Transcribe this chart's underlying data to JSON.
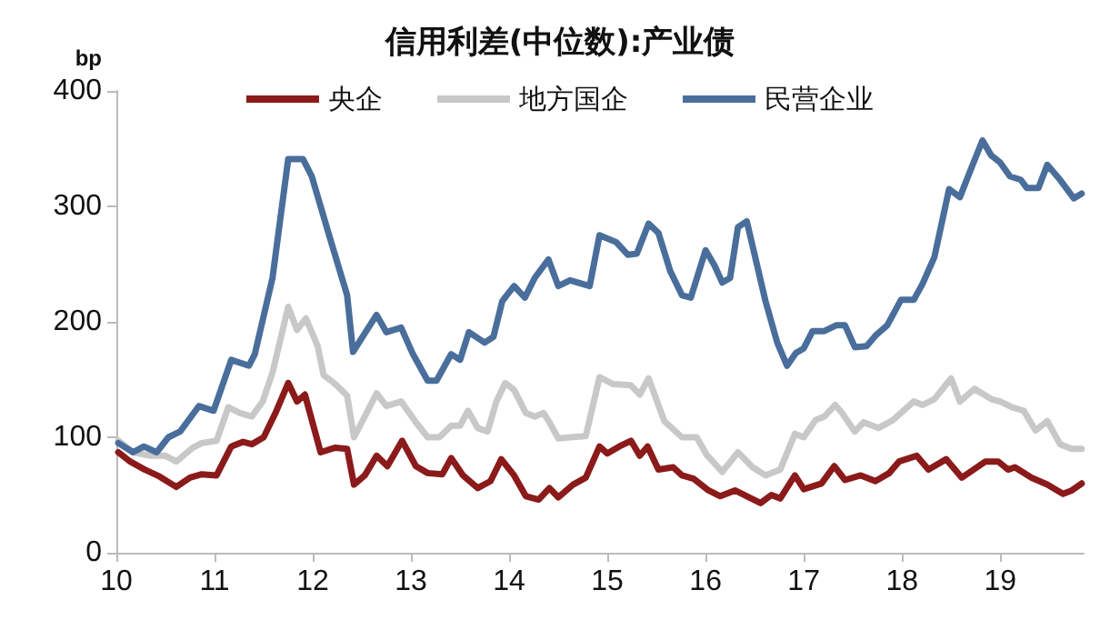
{
  "chart_data": {
    "type": "line",
    "title": "信用利差(中位数):产业债",
    "ylabel": "bp",
    "legend": "top",
    "grid": false,
    "marker": "none",
    "line_style": "solid",
    "xlim": [
      2010,
      2019.85
    ],
    "ylim": [
      0,
      400
    ],
    "yticks": [
      0,
      100,
      200,
      300,
      400
    ],
    "xticks": [
      {
        "value": 2010,
        "label": "10"
      },
      {
        "value": 2011,
        "label": "11"
      },
      {
        "value": 2012,
        "label": "12"
      },
      {
        "value": 2013,
        "label": "13"
      },
      {
        "value": 2014,
        "label": "14"
      },
      {
        "value": 2015,
        "label": "15"
      },
      {
        "value": 2016,
        "label": "16"
      },
      {
        "value": 2017,
        "label": "17"
      },
      {
        "value": 2018,
        "label": "18"
      },
      {
        "value": 2019,
        "label": "19"
      }
    ],
    "series": [
      {
        "name": "央企",
        "color": "#8b1a1a",
        "x": [
          2010.02,
          2010.14,
          2010.29,
          2010.44,
          2010.61,
          2010.75,
          2010.87,
          2011.02,
          2011.17,
          2011.29,
          2011.38,
          2011.5,
          2011.62,
          2011.75,
          2011.84,
          2011.92,
          2012.08,
          2012.23,
          2012.35,
          2012.42,
          2012.53,
          2012.65,
          2012.76,
          2012.91,
          2013.05,
          2013.17,
          2013.32,
          2013.41,
          2013.53,
          2013.68,
          2013.81,
          2013.92,
          2014.05,
          2014.17,
          2014.3,
          2014.41,
          2014.5,
          2014.65,
          2014.78,
          2014.92,
          2015,
          2015.12,
          2015.24,
          2015.33,
          2015.41,
          2015.52,
          2015.67,
          2015.76,
          2015.88,
          2016.03,
          2016.15,
          2016.3,
          2016.42,
          2016.56,
          2016.67,
          2016.76,
          2016.91,
          2017,
          2017.18,
          2017.31,
          2017.42,
          2017.58,
          2017.73,
          2017.87,
          2017.97,
          2018.15,
          2018.27,
          2018.45,
          2018.61,
          2018.85,
          2018.98,
          2019.08,
          2019.15,
          2019.32,
          2019.48,
          2019.64,
          2019.73,
          2019.83
        ],
        "values": [
          87,
          79,
          72,
          66,
          57,
          65,
          68,
          67,
          92,
          96,
          94,
          100,
          121,
          147,
          131,
          137,
          87,
          91,
          90,
          59,
          67,
          84,
          75,
          97,
          75,
          69,
          68,
          82,
          67,
          56,
          62,
          81,
          67,
          49,
          46,
          56,
          48,
          59,
          65,
          92,
          86,
          92,
          97,
          84,
          92,
          72,
          74,
          67,
          64,
          54,
          49,
          54,
          49,
          43,
          50,
          47,
          67,
          55,
          60,
          75,
          63,
          67,
          62,
          69,
          79,
          84,
          72,
          81,
          65,
          79,
          79,
          72,
          74,
          65,
          59,
          51,
          54,
          60
        ]
      },
      {
        "name": "地方国企",
        "color": "#c8c8c8",
        "x": [
          2010.02,
          2010.17,
          2010.35,
          2010.5,
          2010.61,
          2010.78,
          2010.87,
          2011.02,
          2011.14,
          2011.26,
          2011.38,
          2011.49,
          2011.59,
          2011.75,
          2011.84,
          2011.93,
          2012.05,
          2012.11,
          2012.23,
          2012.35,
          2012.42,
          2012.53,
          2012.65,
          2012.75,
          2012.9,
          2013.05,
          2013.17,
          2013.29,
          2013.41,
          2013.5,
          2013.58,
          2013.68,
          2013.78,
          2013.87,
          2013.96,
          2014.05,
          2014.17,
          2014.26,
          2014.35,
          2014.41,
          2014.5,
          2014.62,
          2014.78,
          2014.92,
          2015.06,
          2015.24,
          2015.33,
          2015.42,
          2015.58,
          2015.76,
          2015.91,
          2016.01,
          2016.17,
          2016.33,
          2016.48,
          2016.61,
          2016.76,
          2016.91,
          2017,
          2017.12,
          2017.21,
          2017.32,
          2017.39,
          2017.52,
          2017.61,
          2017.76,
          2017.91,
          2018.12,
          2018.21,
          2018.33,
          2018.5,
          2018.59,
          2018.74,
          2018.91,
          2019,
          2019.12,
          2019.24,
          2019.36,
          2019.48,
          2019.61,
          2019.73,
          2019.83
        ],
        "values": [
          97,
          87,
          84,
          84,
          79,
          91,
          95,
          97,
          126,
          121,
          118,
          131,
          156,
          213,
          193,
          203,
          179,
          154,
          146,
          136,
          100,
          118,
          138,
          127,
          131,
          113,
          100,
          100,
          110,
          110,
          123,
          108,
          105,
          131,
          147,
          141,
          121,
          118,
          121,
          113,
          99,
          100,
          101,
          152,
          146,
          145,
          137,
          151,
          114,
          100,
          100,
          85,
          70,
          87,
          74,
          67,
          72,
          103,
          100,
          115,
          118,
          128,
          121,
          105,
          113,
          108,
          115,
          131,
          128,
          133,
          151,
          131,
          142,
          133,
          131,
          126,
          123,
          106,
          114,
          94,
          90,
          90
        ]
      },
      {
        "name": "民营企业",
        "color": "#4a6e9b",
        "x": [
          2010.02,
          2010.17,
          2010.28,
          2010.41,
          2010.53,
          2010.65,
          2010.84,
          2010.99,
          2011.17,
          2011.35,
          2011.41,
          2011.59,
          2011.75,
          2011.9,
          2011.99,
          2012.17,
          2012.35,
          2012.41,
          2012.53,
          2012.65,
          2012.75,
          2012.9,
          2013.02,
          2013.17,
          2013.26,
          2013.41,
          2013.5,
          2013.59,
          2013.75,
          2013.84,
          2013.93,
          2014.05,
          2014.16,
          2014.26,
          2014.4,
          2014.5,
          2014.62,
          2014.82,
          2014.92,
          2015.09,
          2015.21,
          2015.3,
          2015.42,
          2015.52,
          2015.64,
          2015.76,
          2015.85,
          2016,
          2016.09,
          2016.17,
          2016.25,
          2016.33,
          2016.42,
          2016.61,
          2016.73,
          2016.83,
          2016.92,
          2017,
          2017.09,
          2017.21,
          2017.33,
          2017.42,
          2017.52,
          2017.64,
          2017.73,
          2017.85,
          2017.99,
          2018.12,
          2018.21,
          2018.33,
          2018.48,
          2018.59,
          2018.72,
          2018.82,
          2018.91,
          2019,
          2019.1,
          2019.21,
          2019.27,
          2019.39,
          2019.48,
          2019.61,
          2019.75,
          2019.83
        ],
        "values": [
          95,
          87,
          92,
          87,
          100,
          105,
          127,
          123,
          167,
          162,
          172,
          238,
          341,
          341,
          326,
          274,
          223,
          174,
          190,
          206,
          191,
          195,
          172,
          149,
          149,
          172,
          167,
          191,
          182,
          187,
          218,
          231,
          221,
          238,
          254,
          231,
          236,
          231,
          275,
          269,
          258,
          259,
          285,
          277,
          244,
          223,
          221,
          262,
          249,
          234,
          238,
          282,
          287,
          218,
          182,
          162,
          173,
          177,
          192,
          192,
          197,
          197,
          178,
          179,
          188,
          197,
          219,
          219,
          233,
          256,
          315,
          308,
          336,
          357,
          344,
          338,
          326,
          323,
          316,
          316,
          336,
          323,
          307,
          311
        ]
      }
    ]
  }
}
